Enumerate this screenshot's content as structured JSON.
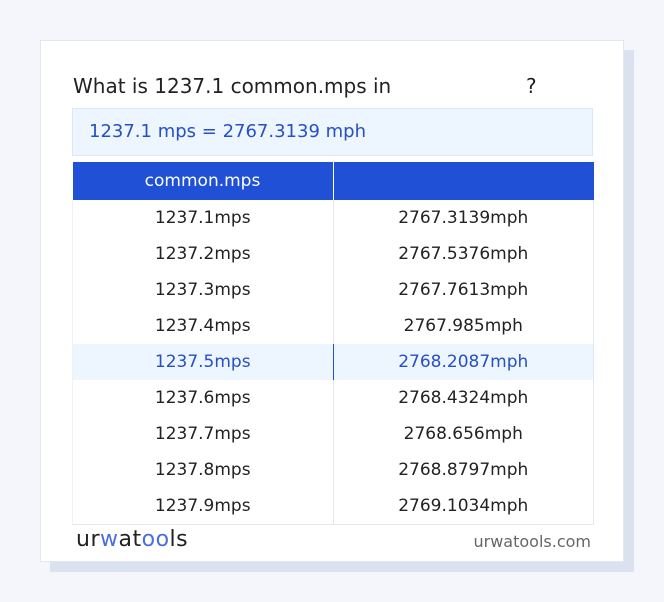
{
  "title": {
    "text": "What is 1237.1 common.mps in",
    "suffix": "?"
  },
  "result": "1237.1 mps = 2767.3139 mph",
  "table": {
    "headers": [
      "common.mps",
      ""
    ],
    "rows": [
      [
        "1237.1mps",
        "2767.3139mph"
      ],
      [
        "1237.2mps",
        "2767.5376mph"
      ],
      [
        "1237.3mps",
        "2767.7613mph"
      ],
      [
        "1237.4mps",
        "2767.985mph"
      ],
      [
        "1237.5mps",
        "2768.2087mph"
      ],
      [
        "1237.6mps",
        "2768.4324mph"
      ],
      [
        "1237.7mps",
        "2768.656mph"
      ],
      [
        "1237.8mps",
        "2768.8797mph"
      ],
      [
        "1237.9mps",
        "2769.1034mph"
      ]
    ],
    "highlighted_row": 4
  },
  "footer": {
    "logo": "urwatools",
    "site": "urwatools.com"
  },
  "colors": {
    "accent": "#1f50d6",
    "result_text": "#2650c4"
  }
}
